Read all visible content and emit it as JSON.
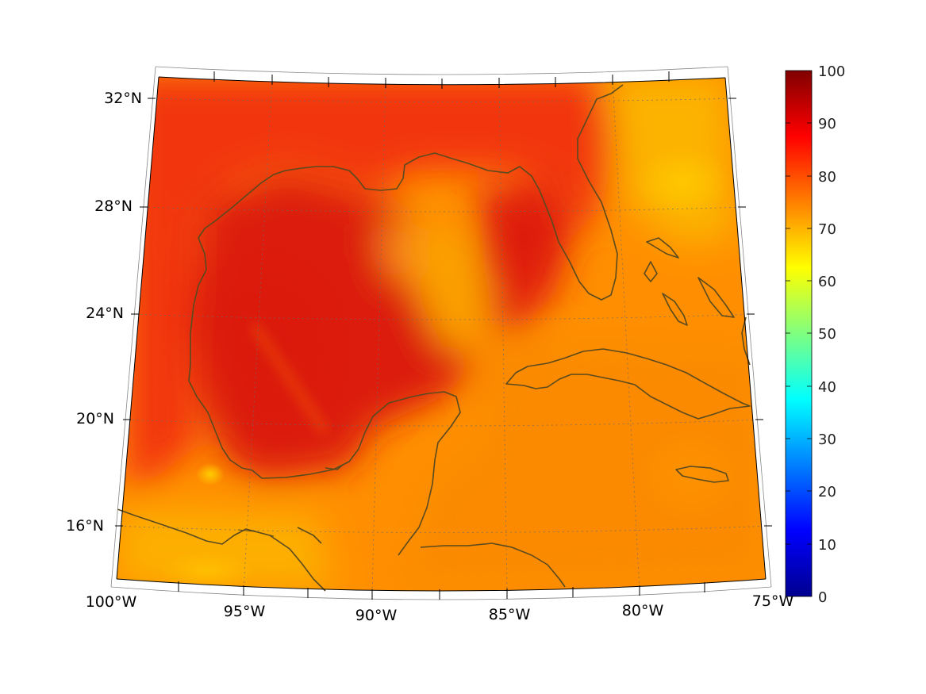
{
  "map": {
    "lat_labels": [
      "32°N",
      "28°N",
      "24°N",
      "20°N",
      "16°N"
    ],
    "lon_labels": [
      "100°W",
      "95°W",
      "90°W",
      "85°W",
      "80°W",
      "75°W"
    ]
  },
  "colorbar": {
    "colormap": "jet",
    "ticks": [
      "100",
      "90",
      "80",
      "70",
      "60",
      "50",
      "40",
      "30",
      "20",
      "10",
      "0"
    ],
    "range": [
      0,
      100
    ]
  },
  "colors": {
    "land_outline": "#5a4a1e",
    "grid": "#6b6b6b",
    "frame": "#000000"
  }
}
